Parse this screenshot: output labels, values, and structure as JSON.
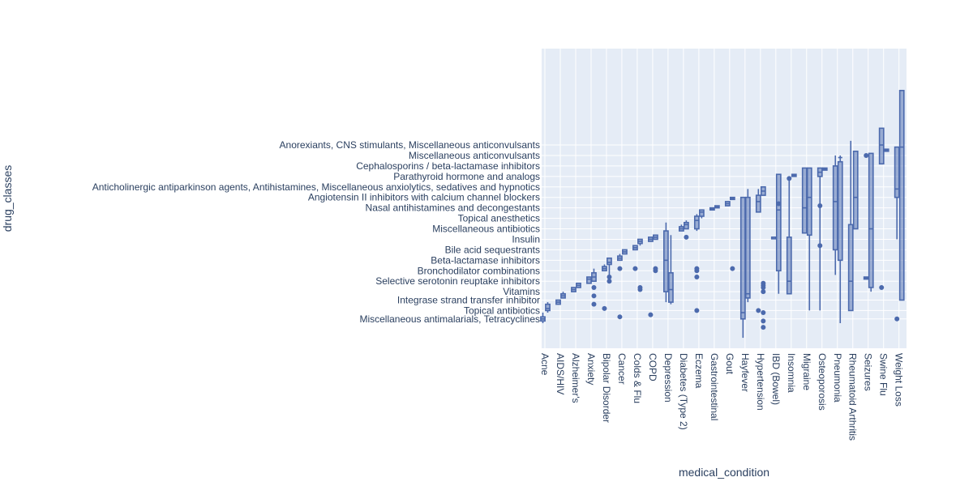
{
  "chart_data": {
    "type": "box",
    "xlabel": "medical_condition",
    "ylabel": "drug_classes",
    "x_categories": [
      "Acne",
      "AIDS/HIV",
      "Alzheimer's",
      "Anxiety",
      "Bipolar Disorder",
      "Cancer",
      "Colds & Flu",
      "COPD",
      "Depression",
      "Diabetes (Type 2)",
      "Eczema",
      "Gastrointestinal",
      "Gout",
      "Hayfever",
      "Hypertension",
      "IBD (Bowel)",
      "Insomnia",
      "Migraine",
      "Osteoporosis",
      "Pneumonia",
      "Rheumatoid Arthritis",
      "Seizures",
      "Swine Flu",
      "Weight Loss"
    ],
    "y_tick_labels": [
      "Miscellaneous antimalarials, Tetracyclines",
      "Topical antibiotics",
      "Integrase strand transfer inhibitor",
      "Vitamins",
      "Selective serotonin reuptake inhibitors",
      "Bronchodilator combinations",
      "Beta-lactamase inhibitors",
      "Bile acid sequestrants",
      "Insulin",
      "Miscellaneous antibiotics",
      "Topical anesthetics",
      "Nasal antihistamines and decongestants",
      "Angiotensin II inhibitors with calcium channel blockers",
      "Anticholinergic antiparkinson agents, Antihistamines, Miscellaneous anxiolytics, sedatives and hypnotics",
      "Parathyroid hormone and analogs",
      "Cephalosporins / beta-lactamase inhibitors",
      "Miscellaneous anticonvulsants",
      "Anorexiants, CNS stimulants, Miscellaneous anticonvulsants"
    ],
    "y_tick_positions": [
      2,
      6,
      11,
      15,
      20,
      25,
      30,
      35,
      40,
      45,
      50,
      55,
      60,
      65,
      70,
      75,
      80,
      85
    ],
    "y_range": [
      -12,
      131
    ],
    "grid": true,
    "legend": "none",
    "box_color": "#4c6aad",
    "plot_bg": "#e5ecf6",
    "boxes": [
      {
        "x": "Acne",
        "whisker": [
          0,
          5
        ],
        "q": [
          1,
          3
        ],
        "median": 2,
        "outliers": []
      },
      {
        "x": "Acne",
        "whisker": [
          5,
          10
        ],
        "q": [
          6,
          9
        ],
        "median": 7,
        "outliers": []
      },
      {
        "x": "AIDS/HIV",
        "whisker": [
          9,
          11
        ],
        "q": [
          9,
          11
        ],
        "median": 10,
        "outliers": []
      },
      {
        "x": "AIDS/HIV",
        "whisker": [
          12,
          15
        ],
        "q": [
          12,
          14
        ],
        "median": 13,
        "outliers": []
      },
      {
        "x": "Alzheimer's",
        "whisker": [
          15,
          17
        ],
        "q": [
          15,
          17
        ],
        "median": 16,
        "outliers": []
      },
      {
        "x": "Alzheimer's",
        "whisker": [
          17,
          19
        ],
        "q": [
          17,
          19
        ],
        "median": 18,
        "outliers": []
      },
      {
        "x": "Anxiety",
        "whisker": [
          19,
          22
        ],
        "q": [
          19,
          22
        ],
        "median": 21,
        "outliers": []
      },
      {
        "x": "Anxiety",
        "whisker": [
          20,
          26
        ],
        "q": [
          20,
          24
        ],
        "median": 22,
        "outliers": [
          9,
          13,
          17
        ]
      },
      {
        "x": "Bipolar Disorder",
        "whisker": [
          25,
          28
        ],
        "q": [
          25,
          27
        ],
        "median": 26,
        "outliers": [
          7
        ]
      },
      {
        "x": "Bipolar Disorder",
        "whisker": [
          23,
          31
        ],
        "q": [
          28,
          31
        ],
        "median": 29,
        "outliers": [
          20,
          22
        ]
      },
      {
        "x": "Cancer",
        "whisker": [
          30,
          33
        ],
        "q": [
          30,
          32
        ],
        "median": 31,
        "outliers": [
          3,
          26
        ]
      },
      {
        "x": "Cancer",
        "whisker": [
          33,
          35
        ],
        "q": [
          33,
          35
        ],
        "median": 34,
        "outliers": []
      },
      {
        "x": "Colds & Flu",
        "whisker": [
          35,
          37
        ],
        "q": [
          35,
          37
        ],
        "median": 36,
        "outliers": [
          26
        ]
      },
      {
        "x": "Colds & Flu",
        "whisker": [
          37,
          40
        ],
        "q": [
          38,
          40
        ],
        "median": 39,
        "outliers": [
          16,
          17
        ]
      },
      {
        "x": "COPD",
        "whisker": [
          39,
          41
        ],
        "q": [
          39,
          41
        ],
        "median": 40,
        "outliers": [
          4
        ]
      },
      {
        "x": "COPD",
        "whisker": [
          40,
          42
        ],
        "q": [
          40,
          42
        ],
        "median": 41,
        "outliers": [
          25,
          26
        ]
      },
      {
        "x": "Depression",
        "whisker": [
          10,
          48
        ],
        "q": [
          15,
          44
        ],
        "median": 30,
        "outliers": []
      },
      {
        "x": "Depression",
        "whisker": [
          9,
          42
        ],
        "q": [
          10,
          24
        ],
        "median": 16,
        "outliers": []
      },
      {
        "x": "Diabetes (Type 2)",
        "whisker": [
          44,
          47
        ],
        "q": [
          44,
          46
        ],
        "median": 45,
        "outliers": []
      },
      {
        "x": "Diabetes (Type 2)",
        "whisker": [
          45,
          49
        ],
        "q": [
          45,
          48
        ],
        "median": 47,
        "outliers": [
          41
        ]
      },
      {
        "x": "Eczema",
        "whisker": [
          44,
          52
        ],
        "q": [
          45,
          51
        ],
        "median": 49,
        "outliers": [
          6,
          22,
          25,
          26
        ]
      },
      {
        "x": "Eczema",
        "whisker": [
          50,
          54
        ],
        "q": [
          51,
          54
        ],
        "median": 53,
        "outliers": []
      },
      {
        "x": "Gastrointestinal",
        "whisker": [
          54,
          55
        ],
        "q": [
          54,
          55
        ],
        "median": 54.5,
        "outliers": []
      },
      {
        "x": "Gastrointestinal",
        "whisker": [
          55,
          56
        ],
        "q": [
          55,
          56
        ],
        "median": 55.5,
        "outliers": []
      },
      {
        "x": "Gout",
        "whisker": [
          56,
          58
        ],
        "q": [
          56,
          58
        ],
        "median": 57,
        "outliers": []
      },
      {
        "x": "Gout",
        "whisker": [
          59,
          60
        ],
        "q": [
          59,
          60
        ],
        "median": 59.5,
        "outliers": [
          26
        ]
      },
      {
        "x": "Hayfever",
        "whisker": [
          -7,
          60
        ],
        "q": [
          2,
          60
        ],
        "median": 5,
        "outliers": []
      },
      {
        "x": "Hayfever",
        "whisker": [
          10,
          64
        ],
        "q": [
          12,
          60
        ],
        "median": 14,
        "outliers": []
      },
      {
        "x": "Hypertension",
        "whisker": [
          53,
          64
        ],
        "q": [
          53,
          61
        ],
        "median": 58,
        "outliers": [
          6
        ]
      },
      {
        "x": "Hypertension",
        "whisker": [
          61,
          65
        ],
        "q": [
          61,
          65
        ],
        "median": 63,
        "outliers": [
          -2,
          1,
          5,
          15,
          17,
          18,
          19
        ]
      },
      {
        "x": "IBD (Bowel)",
        "whisker": [
          41,
          41
        ],
        "q": [
          41,
          41
        ],
        "median": 41,
        "outliers": []
      },
      {
        "x": "IBD (Bowel)",
        "whisker": [
          14,
          71
        ],
        "q": [
          25,
          71
        ],
        "median": 54,
        "outliers": [
          57
        ]
      },
      {
        "x": "Insomnia",
        "whisker": [
          14,
          68
        ],
        "q": [
          14,
          41
        ],
        "median": 20,
        "outliers": [
          69
        ]
      },
      {
        "x": "Insomnia",
        "whisker": [
          70,
          71
        ],
        "q": [
          70,
          71
        ],
        "median": 70.5,
        "outliers": []
      },
      {
        "x": "Migraine",
        "whisker": [
          43,
          74
        ],
        "q": [
          43,
          74
        ],
        "median": 55,
        "outliers": []
      },
      {
        "x": "Migraine",
        "whisker": [
          6,
          74
        ],
        "q": [
          42,
          74
        ],
        "median": 60,
        "outliers": []
      },
      {
        "x": "Osteoporosis",
        "whisker": [
          6,
          74
        ],
        "q": [
          70,
          74
        ],
        "median": 72,
        "outliers": [
          37,
          56
        ]
      },
      {
        "x": "Osteoporosis",
        "whisker": [
          73,
          74
        ],
        "q": [
          73,
          74
        ],
        "median": 73.5,
        "outliers": []
      },
      {
        "x": "Pneumonia",
        "whisker": [
          23,
          80
        ],
        "q": [
          35,
          75
        ],
        "median": 58,
        "outliers": []
      },
      {
        "x": "Pneumonia",
        "whisker": [
          0,
          80
        ],
        "q": [
          30,
          77
        ],
        "median": 79,
        "outliers": []
      },
      {
        "x": "Rheumatoid Arthritis",
        "whisker": [
          6,
          87
        ],
        "q": [
          6,
          47
        ],
        "median": 20,
        "outliers": []
      },
      {
        "x": "Rheumatoid Arthritis",
        "whisker": [
          45,
          82
        ],
        "q": [
          45,
          82
        ],
        "median": 60,
        "outliers": []
      },
      {
        "x": "Seizures",
        "whisker": [
          21,
          22
        ],
        "q": [
          21,
          22
        ],
        "median": 21.5,
        "outliers": [
          80
        ]
      },
      {
        "x": "Seizures",
        "whisker": [
          15,
          81
        ],
        "q": [
          17,
          81
        ],
        "median": 45,
        "outliers": []
      },
      {
        "x": "Swine Flu",
        "whisker": [
          76,
          93
        ],
        "q": [
          76,
          93
        ],
        "median": 85,
        "outliers": [
          17
        ]
      },
      {
        "x": "Swine Flu",
        "whisker": [
          82,
          83
        ],
        "q": [
          82,
          83
        ],
        "median": 82.5,
        "outliers": []
      },
      {
        "x": "Weight Loss",
        "whisker": [
          40,
          84
        ],
        "q": [
          60,
          84
        ],
        "median": 64,
        "outliers": [
          2
        ]
      },
      {
        "x": "Weight Loss",
        "whisker": [
          11,
          111
        ],
        "q": [
          11,
          111
        ],
        "median": 84,
        "outliers": []
      }
    ]
  }
}
